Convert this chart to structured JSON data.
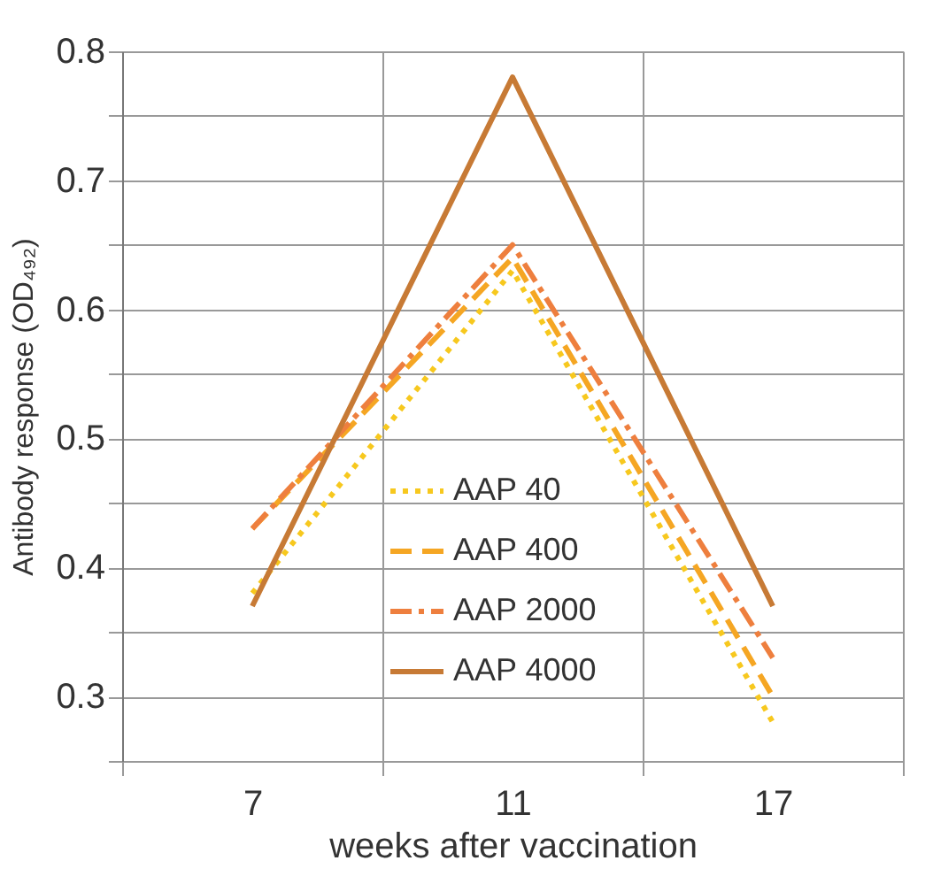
{
  "chart_data": {
    "type": "line",
    "xlabel": "weeks after vaccination",
    "ylabel": "Antibody response (OD₄₉₂)",
    "categories": [
      "7",
      "11",
      "17"
    ],
    "series": [
      {
        "name": "AAP 40",
        "color": "#f7c81e",
        "line_style": "dotted",
        "values": [
          0.38,
          0.63,
          0.28
        ]
      },
      {
        "name": "AAP 400",
        "color": "#f5a623",
        "line_style": "dashed",
        "values": [
          0.43,
          0.64,
          0.3
        ]
      },
      {
        "name": "AAP 2000",
        "color": "#ee7f3e",
        "line_style": "dashdot",
        "values": [
          0.43,
          0.65,
          0.33
        ]
      },
      {
        "name": "AAP 4000",
        "color": "#c77a35",
        "line_style": "solid",
        "values": [
          0.37,
          0.78,
          0.37
        ]
      }
    ],
    "ylim": [
      0.25,
      0.8
    ],
    "yticks": [
      {
        "value": 0.25,
        "label": null
      },
      0.3,
      {
        "value": 0.35,
        "label": null
      },
      0.4,
      {
        "value": 0.45,
        "label": null
      },
      0.5,
      {
        "value": 0.55,
        "label": null
      },
      0.6,
      {
        "value": 0.65,
        "label": null
      },
      0.7,
      {
        "value": 0.75,
        "label": null
      },
      0.8
    ],
    "grid": true,
    "legend": "bottom",
    "marker": "none"
  }
}
